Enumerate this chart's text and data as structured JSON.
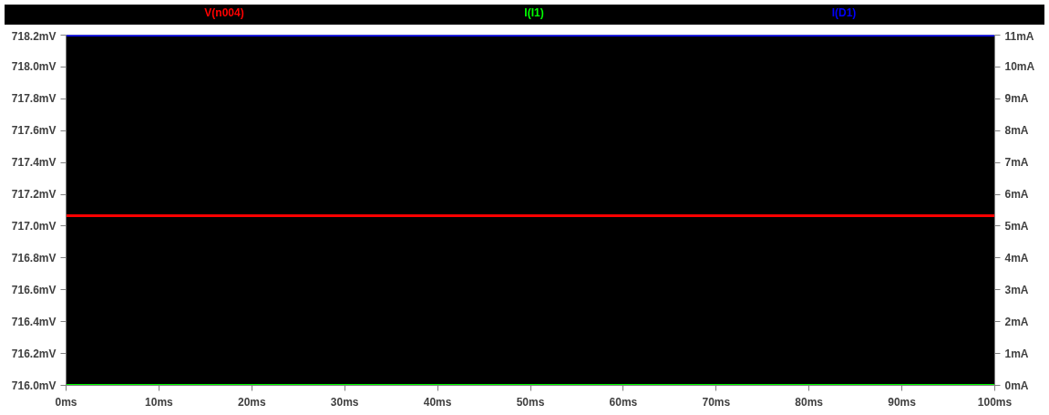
{
  "chart_data": {
    "type": "line",
    "x": [
      0,
      100
    ],
    "xlim": [
      0,
      100
    ],
    "xticks": [
      {
        "value": 0,
        "label": "0ms"
      },
      {
        "value": 10,
        "label": "10ms"
      },
      {
        "value": 20,
        "label": "20ms"
      },
      {
        "value": 30,
        "label": "30ms"
      },
      {
        "value": 40,
        "label": "40ms"
      },
      {
        "value": 50,
        "label": "50ms"
      },
      {
        "value": 60,
        "label": "60ms"
      },
      {
        "value": 70,
        "label": "70ms"
      },
      {
        "value": 80,
        "label": "80ms"
      },
      {
        "value": 90,
        "label": "90ms"
      },
      {
        "value": 100,
        "label": "100ms"
      }
    ],
    "ylim": [
      716.0,
      718.2
    ],
    "yticks": [
      {
        "value": 716.0,
        "label": "716.0mV"
      },
      {
        "value": 716.2,
        "label": "716.2mV"
      },
      {
        "value": 716.4,
        "label": "716.4mV"
      },
      {
        "value": 716.6,
        "label": "716.6mV"
      },
      {
        "value": 716.8,
        "label": "716.8mV"
      },
      {
        "value": 717.0,
        "label": "717.0mV"
      },
      {
        "value": 717.2,
        "label": "717.2mV"
      },
      {
        "value": 717.4,
        "label": "717.4mV"
      },
      {
        "value": 717.6,
        "label": "717.6mV"
      },
      {
        "value": 717.8,
        "label": "717.8mV"
      },
      {
        "value": 718.0,
        "label": "718.0mV"
      },
      {
        "value": 718.2,
        "label": "718.2mV"
      }
    ],
    "y2lim": [
      0,
      11
    ],
    "y2ticks": [
      {
        "value": 0,
        "label": "0mA"
      },
      {
        "value": 1,
        "label": "1mA"
      },
      {
        "value": 2,
        "label": "2mA"
      },
      {
        "value": 3,
        "label": "3mA"
      },
      {
        "value": 4,
        "label": "4mA"
      },
      {
        "value": 5,
        "label": "5mA"
      },
      {
        "value": 6,
        "label": "6mA"
      },
      {
        "value": 7,
        "label": "7mA"
      },
      {
        "value": 8,
        "label": "8mA"
      },
      {
        "value": 9,
        "label": "9mA"
      },
      {
        "value": 10,
        "label": "10mA"
      },
      {
        "value": 11,
        "label": "11mA"
      }
    ],
    "series": [
      {
        "name": "V(n004)",
        "color": "#ff0000",
        "values": [
          717.065,
          717.065
        ]
      },
      {
        "name": "I(I1)",
        "color": "#00ff00",
        "axis": "y2",
        "values": [
          0,
          0
        ]
      },
      {
        "name": "I(D1)",
        "color": "#0000ff",
        "axis": "y2",
        "values": [
          11,
          11
        ]
      }
    ]
  }
}
